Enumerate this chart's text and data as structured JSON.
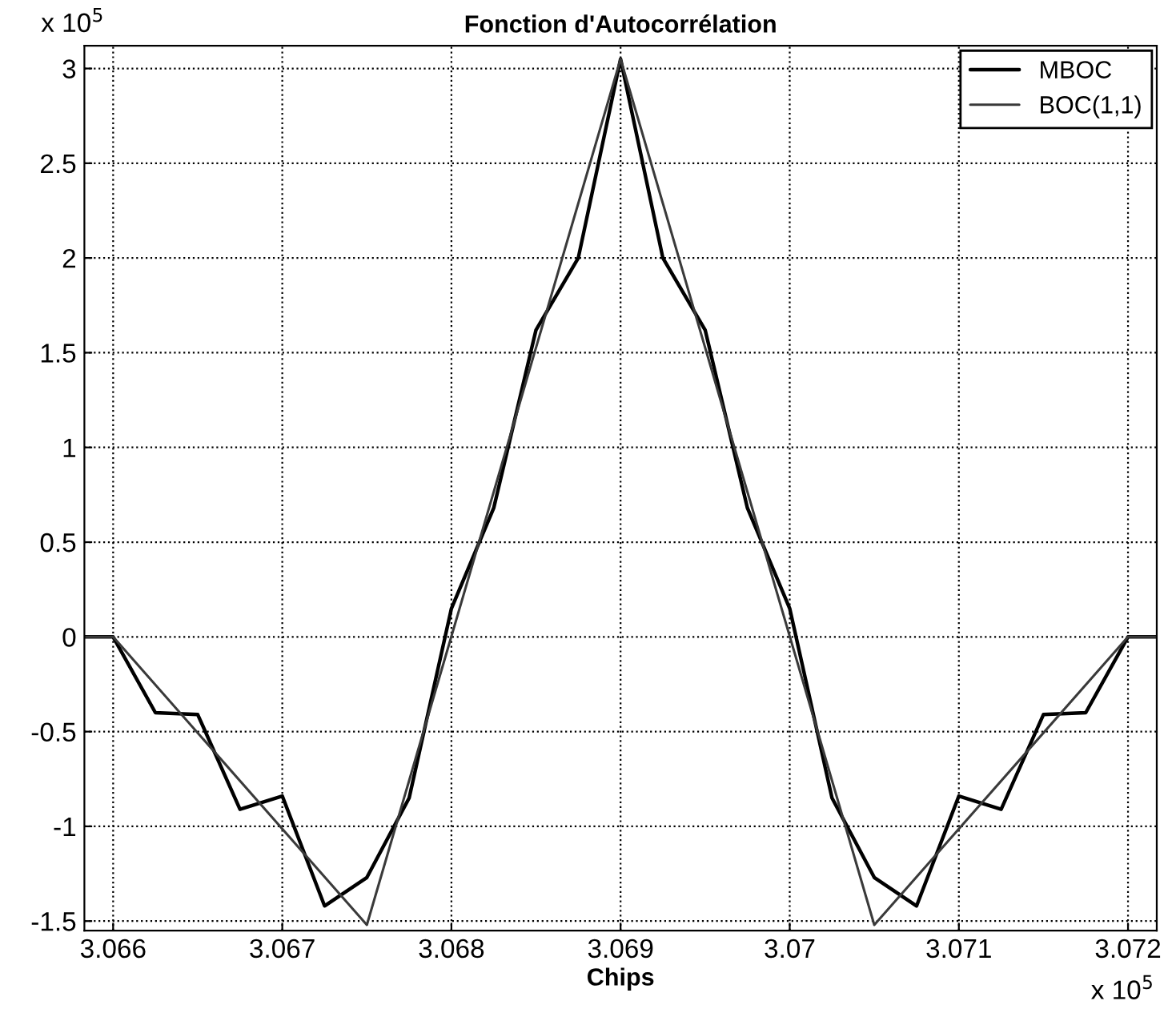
{
  "chart_data": {
    "type": "line",
    "title": "Fonction d'Autocorrélation",
    "xlabel": "Chips",
    "annotations": [
      "x 10$^{5}$",
      "x 10$^{5}$"
    ],
    "series": [
      {
        "name": "MBOC",
        "color": "#000000",
        "x": [
          3.06583,
          3.066,
          3.06625,
          3.0665,
          3.06675,
          3.067,
          3.06725,
          3.0675,
          3.06775,
          3.068,
          3.06825,
          3.0685,
          3.06875,
          3.069,
          3.06925,
          3.0695,
          3.06975,
          3.07,
          3.07025,
          3.0705,
          3.07075,
          3.071,
          3.07125,
          3.0715,
          3.07175,
          3.072,
          3.07217
        ],
        "values": [
          0,
          0,
          -0.4,
          -0.41,
          -0.91,
          -0.84,
          -1.42,
          -1.27,
          -0.85,
          0.15,
          0.68,
          1.62,
          2.0,
          3.05,
          2.0,
          1.62,
          0.68,
          0.15,
          -0.85,
          -1.27,
          -1.42,
          -0.84,
          -0.91,
          -0.41,
          -0.4,
          0,
          0
        ]
      },
      {
        "name": "BOC(1,1)",
        "color": "#3a3a3a",
        "x": [
          3.06583,
          3.066,
          3.0675,
          3.069,
          3.0705,
          3.072,
          3.07217
        ],
        "values": [
          0,
          0,
          -1.52,
          3.05,
          -1.52,
          0,
          0
        ]
      }
    ],
    "xlim": [
      3.06583,
      3.07217
    ],
    "xticks": [
      3.066,
      3.067,
      3.068,
      3.069,
      3.07,
      3.071,
      3.072
    ],
    "ylim": [
      -1.55,
      3.12
    ],
    "yticks": [
      -1.5,
      -1,
      -0.5,
      0,
      0.5,
      1,
      1.5,
      2,
      2.5,
      3
    ],
    "grid": true,
    "legend": "top right",
    "line_style": "solid",
    "marker": "none"
  }
}
